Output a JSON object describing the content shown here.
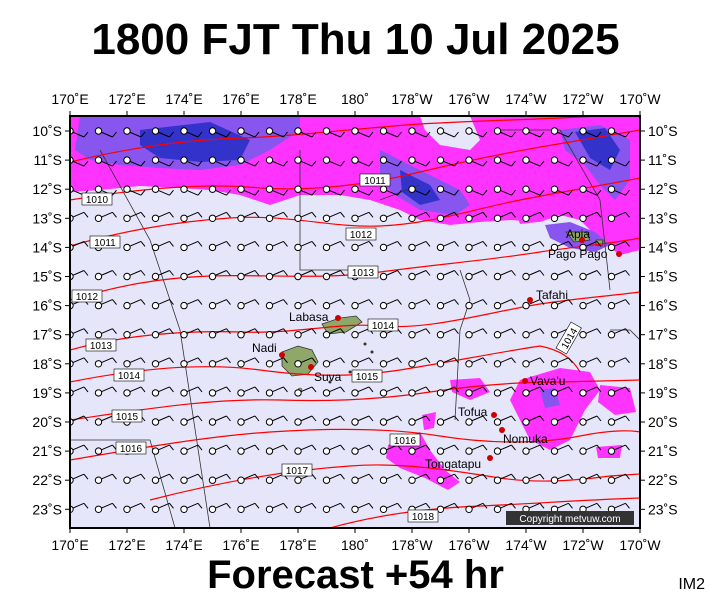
{
  "header": {
    "title": "1800 FJT Thu 10 Jul 2025"
  },
  "footer": {
    "forecast": "Forecast +54 hr",
    "product_code": "IM2"
  },
  "copyright": "Copyright metvuw.com",
  "colors": {
    "background": "#e6e6fa",
    "rain_light": "#ff33ff",
    "rain_medium": "#8855ee",
    "rain_heavy": "#3333cc",
    "isobar": "#ff0000",
    "land": "#8fa86a",
    "place_dot": "#cc0000"
  },
  "axes": {
    "lon_labels": [
      "170˚E",
      "172˚E",
      "174˚E",
      "176˚E",
      "178˚E",
      "180˚",
      "178˚W",
      "176˚W",
      "174˚W",
      "172˚W",
      "170˚W"
    ],
    "lat_labels": [
      "10˚S",
      "11˚S",
      "12˚S",
      "13˚S",
      "14˚S",
      "15˚S",
      "16˚S",
      "17˚S",
      "18˚S",
      "19˚S",
      "20˚S",
      "21˚S",
      "22˚S",
      "23˚S"
    ]
  },
  "isobars": [
    {
      "label": "1010"
    },
    {
      "label": "1011"
    },
    {
      "label": "1011"
    },
    {
      "label": "1012"
    },
    {
      "label": "1012"
    },
    {
      "label": "1013"
    },
    {
      "label": "1013"
    },
    {
      "label": "1014"
    },
    {
      "label": "1014"
    },
    {
      "label": "1014"
    },
    {
      "label": "1015"
    },
    {
      "label": "1015"
    },
    {
      "label": "1016"
    },
    {
      "label": "1016"
    },
    {
      "label": "1017"
    },
    {
      "label": "1018"
    }
  ],
  "places": [
    {
      "name": "Apia"
    },
    {
      "name": "Pago Pago"
    },
    {
      "name": "Tafahi"
    },
    {
      "name": "Labasa"
    },
    {
      "name": "Nadi"
    },
    {
      "name": "Suva"
    },
    {
      "name": "Vava'u"
    },
    {
      "name": "Tofua"
    },
    {
      "name": "Nomuka"
    },
    {
      "name": "Tongatapu"
    }
  ]
}
